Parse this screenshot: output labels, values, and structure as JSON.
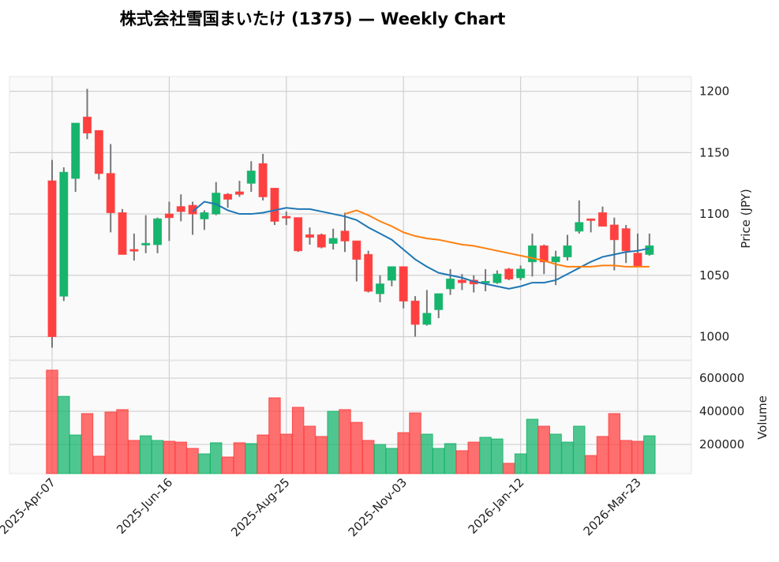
{
  "chart_data": {
    "type": "candlestick",
    "title": "株式会社雪国まいたけ (1375) — Weekly Chart",
    "price_panel": {
      "ylabel": "Price (JPY)",
      "ylim": [
        981,
        1212
      ],
      "yticks": [
        1000,
        1050,
        1100,
        1150,
        1200
      ],
      "grid": true
    },
    "volume_panel": {
      "ylabel": "Volume",
      "ylim": [
        24000,
        705000
      ],
      "yticks": [
        200000,
        400000,
        600000
      ],
      "grid": true
    },
    "xtick_labels": [
      "2025-Apr-07",
      "2025-Jun-16",
      "2025-Aug-25",
      "2025-Nov-03",
      "2026-Jan-12",
      "2026-Mar-23"
    ],
    "xtick_index": [
      0,
      10,
      20,
      30,
      40,
      50
    ],
    "colors": {
      "up": "#16b46c",
      "down": "#ff4040",
      "ma_short": "#1f77b4",
      "ma_long": "#ff7f0e",
      "wick": "#777777"
    },
    "ohlc": [
      [
        1127,
        1144,
        991,
        1000
      ],
      [
        1033,
        1138,
        1029,
        1134
      ],
      [
        1129,
        1174,
        1118,
        1174
      ],
      [
        1179,
        1202,
        1161,
        1166
      ],
      [
        1168,
        1168,
        1128,
        1133
      ],
      [
        1133,
        1157,
        1085,
        1101
      ],
      [
        1101,
        1104,
        1067,
        1067
      ],
      [
        1071,
        1084,
        1062,
        1070
      ],
      [
        1075,
        1099,
        1068,
        1076
      ],
      [
        1075,
        1097,
        1068,
        1096
      ],
      [
        1100,
        1110,
        1078,
        1097
      ],
      [
        1106,
        1116,
        1094,
        1102
      ],
      [
        1107,
        1110,
        1083,
        1100
      ],
      [
        1096,
        1103,
        1087,
        1101
      ],
      [
        1100,
        1126,
        1099,
        1117
      ],
      [
        1116,
        1117,
        1105,
        1112
      ],
      [
        1118,
        1127,
        1114,
        1116
      ],
      [
        1125,
        1143,
        1118,
        1135
      ],
      [
        1141,
        1149,
        1111,
        1114
      ],
      [
        1121,
        1121,
        1091,
        1094
      ],
      [
        1098,
        1102,
        1091,
        1097
      ],
      [
        1097,
        1097,
        1069,
        1070
      ],
      [
        1083,
        1089,
        1075,
        1081
      ],
      [
        1083,
        1084,
        1072,
        1073
      ],
      [
        1076,
        1088,
        1071,
        1080
      ],
      [
        1086,
        1101,
        1069,
        1078
      ],
      [
        1078,
        1078,
        1045,
        1063
      ],
      [
        1067,
        1070,
        1036,
        1037
      ],
      [
        1035,
        1050,
        1028,
        1043
      ],
      [
        1046,
        1057,
        1041,
        1057
      ],
      [
        1057,
        1057,
        1023,
        1029
      ],
      [
        1029,
        1033,
        1000,
        1010
      ],
      [
        1010,
        1038,
        1009,
        1019
      ],
      [
        1022,
        1035,
        1015,
        1035
      ],
      [
        1039,
        1055,
        1034,
        1047
      ],
      [
        1046,
        1051,
        1038,
        1044
      ],
      [
        1046,
        1050,
        1036,
        1043
      ],
      [
        1044,
        1055,
        1037,
        1045
      ],
      [
        1044,
        1054,
        1043,
        1051
      ],
      [
        1055,
        1056,
        1046,
        1047
      ],
      [
        1048,
        1058,
        1046,
        1055
      ],
      [
        1061,
        1084,
        1049,
        1074
      ],
      [
        1074,
        1075,
        1051,
        1061
      ],
      [
        1061,
        1070,
        1042,
        1065
      ],
      [
        1065,
        1083,
        1062,
        1074
      ],
      [
        1086,
        1111,
        1084,
        1093
      ],
      [
        1096,
        1096,
        1085,
        1095
      ],
      [
        1101,
        1106,
        1090,
        1090
      ],
      [
        1091,
        1097,
        1054,
        1079
      ],
      [
        1088,
        1091,
        1060,
        1070
      ],
      [
        1068,
        1084,
        1057,
        1057
      ],
      [
        1067,
        1084,
        1066,
        1074
      ]
    ],
    "volume": [
      648000,
      490000,
      257000,
      386000,
      129000,
      395000,
      410000,
      224000,
      252000,
      224000,
      219000,
      214000,
      176000,
      143000,
      210000,
      124000,
      210000,
      205000,
      257000,
      481000,
      262000,
      424000,
      310000,
      248000,
      400000,
      410000,
      333000,
      224000,
      200000,
      176000,
      271000,
      390000,
      262000,
      176000,
      205000,
      162000,
      214000,
      243000,
      233000,
      86000,
      143000,
      352000,
      310000,
      262000,
      214000,
      310000,
      133000,
      248000,
      386000,
      224000,
      219000,
      252000
    ],
    "ma_short": {
      "start_index": 12,
      "values": [
        1102,
        1110,
        1108,
        1103,
        1100,
        1100,
        1101,
        1103,
        1105,
        1104,
        1104,
        1102,
        1100,
        1098,
        1095,
        1089,
        1084,
        1079,
        1071,
        1063,
        1057,
        1052,
        1050,
        1048,
        1045,
        1043,
        1041,
        1039,
        1041,
        1044,
        1044,
        1046,
        1051,
        1056,
        1061,
        1065,
        1067,
        1069,
        1070,
        1072
      ]
    },
    "ma_long": {
      "start_index": 25,
      "values": [
        1100,
        1103,
        1099,
        1094,
        1090,
        1085,
        1082,
        1080,
        1079,
        1077,
        1075,
        1074,
        1072,
        1070,
        1068,
        1066,
        1064,
        1062,
        1059,
        1057,
        1057,
        1057,
        1058,
        1058,
        1057,
        1057,
        1057
      ]
    }
  }
}
